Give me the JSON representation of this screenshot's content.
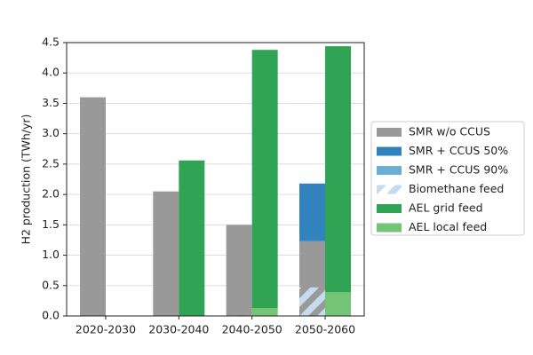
{
  "chart_data": {
    "type": "grouped-stacked-bar",
    "y_label": "H2 production (TWh/yr)",
    "categories": [
      "2020-2030",
      "2030-2040",
      "2040-2050",
      "2050-2060"
    ],
    "series": [
      {
        "name": "SMR w/o CCUS",
        "color": "#999999",
        "group": "left",
        "values": [
          3.6,
          2.05,
          1.5,
          1.23
        ]
      },
      {
        "name": "SMR + CCUS 50%",
        "color": "#3182bd",
        "group": "left",
        "values": [
          0,
          0,
          0,
          0.95
        ]
      },
      {
        "name": "SMR + CCUS 90%",
        "color": "#6baed6",
        "group": "left",
        "values": [
          0,
          0,
          0,
          0
        ]
      },
      {
        "name": "Biomethane feed",
        "color": "#c6dbef",
        "group": "left",
        "hatch": true,
        "overlay": true,
        "values": [
          0,
          0,
          0.01,
          0.47
        ]
      },
      {
        "name": "AEL grid feed",
        "color": "#31a354",
        "group": "right",
        "values": [
          0,
          2.56,
          4.25,
          4.05
        ]
      },
      {
        "name": "AEL local feed",
        "color": "#74c476",
        "group": "right",
        "values": [
          0,
          0,
          0.13,
          0.39
        ]
      }
    ],
    "ylim": [
      0,
      4.5
    ],
    "yticks": [
      {
        "value": 0,
        "label": "0.0"
      },
      0.5,
      {
        "value": 1,
        "label": "1.0"
      },
      1.5,
      {
        "value": 2,
        "label": "2.0"
      },
      2.5,
      {
        "value": 3,
        "label": "3.0"
      },
      3.5,
      {
        "value": 4,
        "label": "4.0"
      },
      4.5
    ],
    "grid": true,
    "legend": "right"
  }
}
